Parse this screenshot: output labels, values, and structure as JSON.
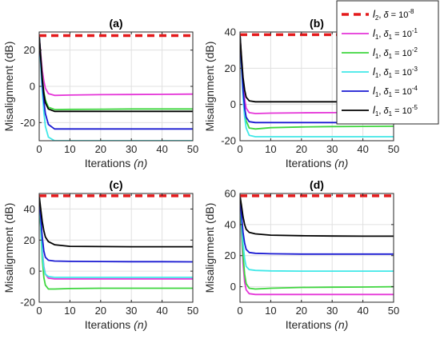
{
  "figure": {
    "background": "#ffffff",
    "axis_color": "#262626",
    "grid_color": "#e0e0e0"
  },
  "chart_data": [
    {
      "type": "line",
      "panel": "(a)",
      "title": "(a)",
      "xlabel": "Iterations",
      "xlabel_var": "(n)",
      "ylabel": "Misalignment (dB)",
      "xlim": [
        0,
        50
      ],
      "ylim": [
        -30,
        30
      ],
      "xticks": [
        0,
        10,
        20,
        30,
        40,
        50
      ],
      "yticks": [
        -20,
        0,
        20
      ],
      "grid": true,
      "curves": [
        {
          "ref": "l2",
          "x": [
            0,
            50
          ],
          "y": [
            28,
            28
          ]
        },
        {
          "ref": "d1e1",
          "x": [
            0,
            0.5,
            1,
            1.5,
            2,
            3,
            5,
            10,
            20,
            30,
            40,
            50
          ],
          "y": [
            28,
            18,
            9,
            3,
            -1,
            -4,
            -5,
            -4.8,
            -4.6,
            -4.5,
            -4.4,
            -4.3
          ]
        },
        {
          "ref": "d1e2",
          "x": [
            0,
            0.5,
            1,
            1.5,
            2,
            3,
            5,
            10,
            20,
            30,
            40,
            50
          ],
          "y": [
            28,
            16,
            5,
            -3,
            -7.5,
            -11.5,
            -12.8,
            -12.7,
            -12.6,
            -12.5,
            -12.5,
            -12.5
          ]
        },
        {
          "ref": "d1e3",
          "x": [
            0,
            0.5,
            1,
            1.5,
            2,
            3,
            5,
            10,
            20,
            30,
            40,
            50
          ],
          "y": [
            28,
            12,
            -3,
            -14,
            -22,
            -28,
            -30,
            -30,
            -30,
            -30,
            -30,
            -30
          ]
        },
        {
          "ref": "d1e4",
          "x": [
            0,
            0.5,
            1,
            1.5,
            2,
            3,
            5,
            10,
            20,
            30,
            40,
            50
          ],
          "y": [
            28,
            15,
            2,
            -8,
            -15,
            -21,
            -23.5,
            -23.5,
            -23.5,
            -23.5,
            -23.5,
            -23.5
          ]
        },
        {
          "ref": "d1e5",
          "x": [
            0,
            0.5,
            1,
            1.5,
            2,
            3,
            5,
            10,
            20,
            30,
            40,
            50
          ],
          "y": [
            28,
            16,
            4,
            -4,
            -9,
            -12.5,
            -13.8,
            -13.8,
            -13.8,
            -13.8,
            -13.8,
            -13.8
          ]
        }
      ]
    },
    {
      "type": "line",
      "panel": "(b)",
      "title": "(b)",
      "xlabel": "Iterations",
      "xlabel_var": "(n)",
      "ylabel": "Misalignment (dB)",
      "xlim": [
        0,
        50
      ],
      "ylim": [
        -20,
        40
      ],
      "xticks": [
        0,
        10,
        20,
        30,
        40,
        50
      ],
      "yticks": [
        -20,
        0,
        20,
        40
      ],
      "grid": true,
      "curves": [
        {
          "ref": "l2",
          "x": [
            0,
            50
          ],
          "y": [
            38.5,
            38.5
          ]
        },
        {
          "ref": "d1e1",
          "x": [
            0,
            0.5,
            1,
            1.5,
            2,
            3,
            5,
            10,
            20,
            30,
            40,
            50
          ],
          "y": [
            38.5,
            25,
            12,
            3,
            -2,
            -4.5,
            -5,
            -4.8,
            -4.6,
            -4.5,
            -4.4,
            -4.3
          ]
        },
        {
          "ref": "d1e2",
          "x": [
            0,
            0.5,
            1,
            1.5,
            2,
            3,
            5,
            10,
            20,
            30,
            40,
            50
          ],
          "y": [
            38.5,
            22,
            8,
            -3,
            -9,
            -13,
            -13.5,
            -12.8,
            -12.4,
            -12.2,
            -12.1,
            -12
          ]
        },
        {
          "ref": "d1e3",
          "x": [
            0,
            0.5,
            1,
            1.5,
            2,
            3,
            5,
            10,
            20,
            30,
            40,
            50
          ],
          "y": [
            38.5,
            20,
            4,
            -7,
            -13,
            -17,
            -17.8,
            -17.8,
            -17.8,
            -17.8,
            -17.8,
            -17.8
          ]
        },
        {
          "ref": "d1e4",
          "x": [
            0,
            0.5,
            1,
            1.5,
            2,
            3,
            5,
            10,
            20,
            30,
            40,
            50
          ],
          "y": [
            38.5,
            22,
            8,
            -2,
            -7,
            -9.5,
            -10,
            -10,
            -10,
            -10,
            -10,
            -10
          ]
        },
        {
          "ref": "d1e5",
          "x": [
            0,
            0.5,
            1,
            1.5,
            2,
            3,
            5,
            10,
            20,
            30,
            40,
            50
          ],
          "y": [
            38.5,
            26,
            15,
            8,
            4,
            2,
            1.5,
            1.5,
            1.5,
            1.5,
            1.5,
            1.5
          ]
        }
      ]
    },
    {
      "type": "line",
      "panel": "(c)",
      "title": "(c)",
      "xlabel": "Iterations",
      "xlabel_var": "(n)",
      "ylabel": "Misalignment (dB)",
      "xlim": [
        0,
        50
      ],
      "ylim": [
        -20,
        50
      ],
      "xticks": [
        0,
        10,
        20,
        30,
        40,
        50
      ],
      "yticks": [
        -20,
        0,
        20,
        40
      ],
      "grid": true,
      "curves": [
        {
          "ref": "l2",
          "x": [
            0,
            50
          ],
          "y": [
            48.5,
            48.5
          ]
        },
        {
          "ref": "d1e1",
          "x": [
            0,
            0.5,
            1,
            1.5,
            2,
            3,
            5,
            10,
            20,
            30,
            40,
            50
          ],
          "y": [
            48.5,
            30,
            14,
            3,
            -2,
            -4.5,
            -5,
            -5,
            -5,
            -5,
            -5,
            -5
          ]
        },
        {
          "ref": "d1e2",
          "x": [
            0,
            0.5,
            1,
            1.5,
            2,
            3,
            5,
            10,
            20,
            30,
            40,
            50
          ],
          "y": [
            48.5,
            28,
            8,
            -4,
            -9,
            -11.5,
            -11.5,
            -11.2,
            -11,
            -11,
            -11,
            -11
          ]
        },
        {
          "ref": "d1e3",
          "x": [
            0,
            0.5,
            1,
            1.5,
            2,
            3,
            5,
            10,
            20,
            30,
            40,
            50
          ],
          "y": [
            48.5,
            30,
            12,
            2,
            -2,
            -3.5,
            -4,
            -4,
            -4,
            -4,
            -4,
            -4
          ]
        },
        {
          "ref": "d1e4",
          "x": [
            0,
            0.5,
            1,
            1.5,
            2,
            3,
            5,
            10,
            20,
            30,
            40,
            50
          ],
          "y": [
            48.5,
            35,
            22,
            13,
            9,
            7,
            6.5,
            6.3,
            6.2,
            6.1,
            6.1,
            6
          ]
        },
        {
          "ref": "d1e5",
          "x": [
            0,
            0.5,
            1,
            1.5,
            2,
            3,
            5,
            10,
            20,
            30,
            40,
            50
          ],
          "y": [
            48.5,
            40,
            32,
            26,
            22,
            19,
            17,
            16,
            15.8,
            15.7,
            15.7,
            15.7
          ]
        }
      ]
    },
    {
      "type": "line",
      "panel": "(d)",
      "title": "(d)",
      "xlabel": "Iterations",
      "xlabel_var": "(n)",
      "ylabel": "Misalignment (dB)",
      "xlim": [
        0,
        50
      ],
      "ylim": [
        -10,
        60
      ],
      "xticks": [
        0,
        10,
        20,
        30,
        40,
        50
      ],
      "yticks": [
        0,
        20,
        40,
        60
      ],
      "grid": true,
      "curves": [
        {
          "ref": "l2",
          "x": [
            0,
            50
          ],
          "y": [
            58.5,
            58.5
          ]
        },
        {
          "ref": "d1e1",
          "x": [
            0,
            0.5,
            1,
            1.5,
            2,
            3,
            5,
            10,
            20,
            30,
            40,
            50
          ],
          "y": [
            58.5,
            35,
            15,
            3,
            -2,
            -4.5,
            -5,
            -5,
            -5,
            -5,
            -5,
            -5
          ]
        },
        {
          "ref": "d1e2",
          "x": [
            0,
            0.5,
            1,
            1.5,
            2,
            3,
            5,
            10,
            20,
            30,
            40,
            50
          ],
          "y": [
            58.5,
            38,
            20,
            8,
            2,
            -1,
            -1.5,
            -1,
            -0.5,
            -0.3,
            -0.2,
            0
          ]
        },
        {
          "ref": "d1e3",
          "x": [
            0,
            0.5,
            1,
            1.5,
            2,
            3,
            5,
            10,
            20,
            30,
            40,
            50
          ],
          "y": [
            58.5,
            42,
            28,
            18,
            13,
            11,
            10.5,
            10.2,
            10,
            10,
            10,
            10
          ]
        },
        {
          "ref": "d1e4",
          "x": [
            0,
            0.5,
            1,
            1.5,
            2,
            3,
            5,
            10,
            20,
            30,
            40,
            50
          ],
          "y": [
            58.5,
            46,
            35,
            28,
            24,
            22,
            21.5,
            21.2,
            21,
            21,
            21,
            21
          ]
        },
        {
          "ref": "d1e5",
          "x": [
            0,
            0.5,
            1,
            1.5,
            2,
            3,
            5,
            10,
            20,
            30,
            40,
            50
          ],
          "y": [
            58.5,
            52,
            45,
            40,
            37,
            35,
            34,
            33.2,
            32.8,
            32.6,
            32.5,
            32.5
          ]
        }
      ]
    }
  ],
  "legend": {
    "placement": "top-right",
    "entries": [
      {
        "key": "l2",
        "color": "#e41a1c",
        "dashed": true,
        "sym": "l",
        "sub": "2",
        "eq": "δ",
        "eqsub": "",
        "val": "= 10",
        "exp": "-8"
      },
      {
        "key": "d1e1",
        "color": "#e535d8",
        "dashed": false,
        "sym": "l",
        "sub": "1",
        "eq": "δ",
        "eqsub": "1",
        "val": "= 10",
        "exp": "-1"
      },
      {
        "key": "d1e2",
        "color": "#3ed63e",
        "dashed": false,
        "sym": "l",
        "sub": "1",
        "eq": "δ",
        "eqsub": "1",
        "val": "= 10",
        "exp": "-2"
      },
      {
        "key": "d1e3",
        "color": "#40e8e8",
        "dashed": false,
        "sym": "l",
        "sub": "1",
        "eq": "δ",
        "eqsub": "1",
        "val": "= 10",
        "exp": "-3"
      },
      {
        "key": "d1e4",
        "color": "#1a1ad2",
        "dashed": false,
        "sym": "l",
        "sub": "1",
        "eq": "δ",
        "eqsub": "1",
        "val": "= 10",
        "exp": "-4"
      },
      {
        "key": "d1e5",
        "color": "#000000",
        "dashed": false,
        "sym": "l",
        "sub": "1",
        "eq": "δ",
        "eqsub": "1",
        "val": "= 10",
        "exp": "-5"
      }
    ]
  }
}
